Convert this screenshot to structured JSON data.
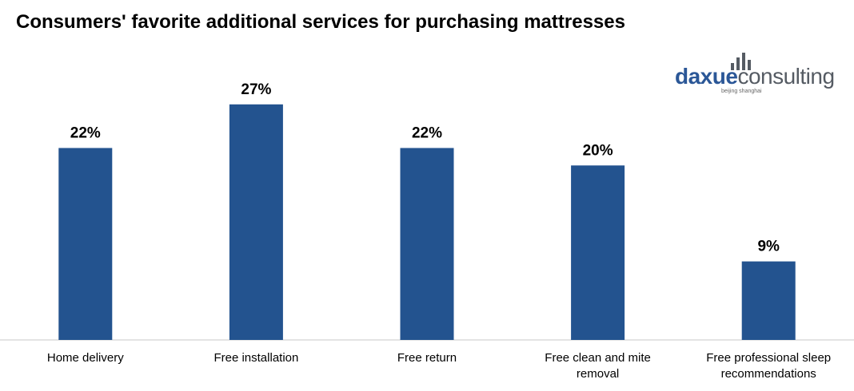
{
  "header": {
    "title": "Consumers' favorite additional services for purchasing mattresses"
  },
  "logo": {
    "brand_primary": "daxue",
    "brand_secondary": "consulting",
    "tagline": "beijing shanghai",
    "primary_color": "#2b5797",
    "secondary_color": "#555b63"
  },
  "chart_data": {
    "type": "bar",
    "title": "Consumers' favorite additional services for purchasing mattresses",
    "categories": [
      [
        "Home delivery"
      ],
      [
        "Free installation"
      ],
      [
        "Free return"
      ],
      [
        "Free clean and mite",
        "removal"
      ],
      [
        "Free professional sleep",
        "recommendations"
      ]
    ],
    "values": [
      22,
      27,
      22,
      20,
      9
    ],
    "value_labels": [
      "22%",
      "27%",
      "22%",
      "20%",
      "9%"
    ],
    "ylim": [
      0,
      30
    ],
    "xlabel": "",
    "ylabel": "",
    "grid": false,
    "legend": "none",
    "bar_color": "#23538f"
  }
}
